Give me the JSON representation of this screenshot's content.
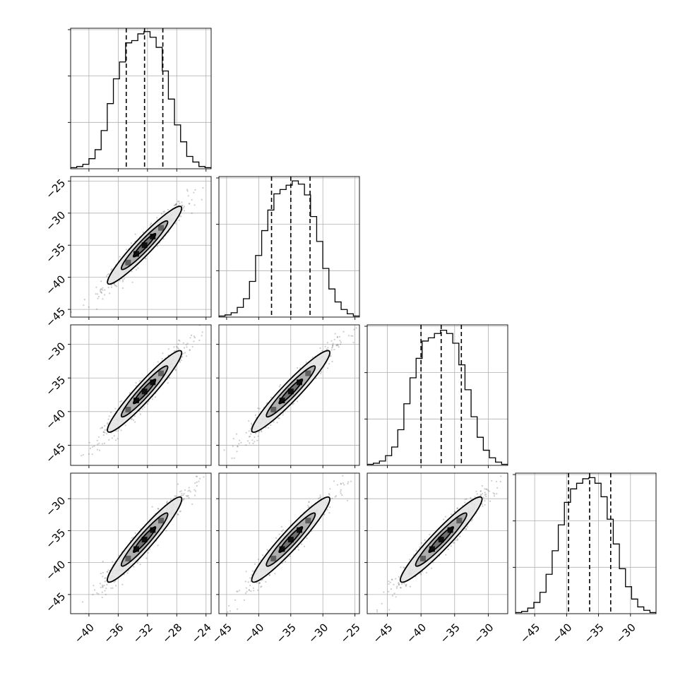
{
  "chart_data": {
    "type": "corner",
    "n_params": 4,
    "grid": true,
    "colors": {
      "points": "#5a5a5a",
      "contour_fill_outer": "#e4e4e4",
      "contour_fill_mid": "#a9a9a9",
      "contour_fill_inner": "#6c6c6c",
      "peak_block": "#000000",
      "hist_line": "#000000",
      "quantile_line": "#000000",
      "grid": "#b0b0b0"
    },
    "params": [
      {
        "name": "",
        "range": [
          -42.5,
          -23.3
        ],
        "x_ticks": [
          -40,
          -36,
          -32,
          -28,
          -24
        ],
        "x_tick_labels": [
          "−40",
          "−36",
          "−32",
          "−28",
          "−24"
        ],
        "y_ticks": [],
        "y_tick_labels": [],
        "hist_bins": [
          1,
          2,
          4,
          9,
          17,
          34,
          58,
          80,
          95,
          112,
          114,
          120,
          122,
          117,
          108,
          87,
          62,
          39,
          24,
          11,
          6,
          2,
          1
        ],
        "hist_ymax": 125,
        "quantiles": [
          -34.9,
          -32.4,
          -29.9
        ]
      },
      {
        "name": "",
        "range": [
          -46.2,
          -24.3
        ],
        "x_ticks": [
          -45,
          -40,
          -35,
          -30,
          -25
        ],
        "x_tick_labels": [
          "−45",
          "−40",
          "−35",
          "−30",
          "−25"
        ],
        "y_ticks": [
          -25,
          -30,
          -35,
          -40,
          -45
        ],
        "y_tick_labels": [
          "−25",
          "−30",
          "−35",
          "−40",
          "−45"
        ],
        "hist_bins": [
          1,
          2,
          4,
          9,
          17,
          33,
          57,
          80,
          99,
          114,
          118,
          122,
          126,
          123,
          113,
          93,
          70,
          45,
          26,
          14,
          7,
          3,
          1
        ],
        "hist_ymax": 130,
        "quantiles": [
          -38.0,
          -35.0,
          -32.0
        ]
      },
      {
        "name": "",
        "range": [
          -48.0,
          -27.1
        ],
        "x_ticks": [
          -45,
          -40,
          -35,
          -30
        ],
        "x_tick_labels": [
          "−45",
          "−40",
          "−35",
          "−30"
        ],
        "y_ticks": [
          -30,
          -35,
          -40,
          -45
        ],
        "y_tick_labels": [
          "−30",
          "−35",
          "−40",
          "−45"
        ],
        "hist_bins": [
          1,
          2,
          4,
          9,
          17,
          33,
          57,
          81,
          99,
          115,
          118,
          122,
          125,
          122,
          113,
          93,
          70,
          45,
          26,
          14,
          7,
          3,
          1
        ],
        "hist_ymax": 130,
        "quantiles": [
          -40.0,
          -37.0,
          -34.0
        ]
      },
      {
        "name": "",
        "range": [
          -48.0,
          -26.0
        ],
        "x_ticks": [
          -45,
          -40,
          -35,
          -30
        ],
        "x_tick_labels": [
          "−45",
          "−40",
          "−35",
          "−30"
        ],
        "y_ticks": [
          -30,
          -35,
          -40,
          -45
        ],
        "y_tick_labels": [
          "−30",
          "−35",
          "−40",
          "−45"
        ],
        "hist_bins": [
          1,
          2,
          5,
          10,
          19,
          35,
          56,
          79,
          99,
          111,
          116,
          120,
          121,
          116,
          104,
          84,
          62,
          40,
          24,
          13,
          6,
          3,
          1
        ],
        "hist_ymax": 125,
        "quantiles": [
          -39.7,
          -36.4,
          -33.1
        ]
      }
    ]
  }
}
